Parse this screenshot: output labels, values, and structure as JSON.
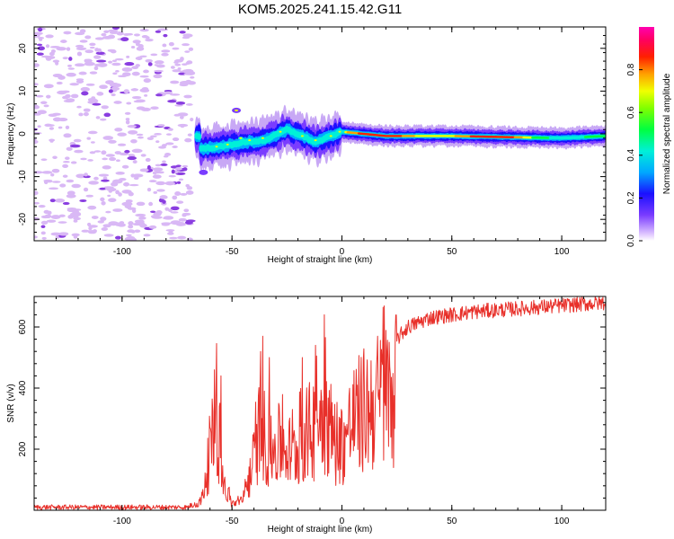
{
  "title": "KOM5.2025.241.15.42.G11",
  "chart_data": [
    {
      "type": "heatmap",
      "name": "spectrogram",
      "xlabel": "Height of straight line (km)",
      "ylabel": "Frequency (Hz)",
      "xlim": [
        -140,
        120
      ],
      "ylim": [
        -25,
        25
      ],
      "xticks": [
        -100,
        -50,
        0,
        50,
        100
      ],
      "yticks": [
        -20,
        -10,
        0,
        10,
        20
      ],
      "ridge": [
        {
          "x": -64,
          "freq": -3.5
        },
        {
          "x": -55,
          "freq": -3
        },
        {
          "x": -45,
          "freq": -2
        },
        {
          "x": -35,
          "freq": -1.5
        },
        {
          "x": -25,
          "freq": 1
        },
        {
          "x": -18,
          "freq": -0.5
        },
        {
          "x": -12,
          "freq": -2
        },
        {
          "x": -5,
          "freq": -0.5
        },
        {
          "x": 0,
          "freq": 0.5
        },
        {
          "x": 10,
          "freq": 0
        },
        {
          "x": 20,
          "freq": -0.5
        },
        {
          "x": 50,
          "freq": -0.5
        },
        {
          "x": 100,
          "freq": -1
        },
        {
          "x": 120,
          "freq": -0.5
        }
      ],
      "colorbar": {
        "label": "Normalized spectral amplitude",
        "range": [
          0,
          1
        ],
        "ticks": [
          "0.0",
          "0.2",
          "0.4",
          "0.6",
          "0.8"
        ]
      }
    },
    {
      "type": "line",
      "name": "snr",
      "xlabel": "Height of straight line (km)",
      "ylabel": "SNR (v/v)",
      "xlim": [
        -140,
        120
      ],
      "ylim": [
        0,
        700
      ],
      "xticks": [
        -100,
        -50,
        0,
        50,
        100
      ],
      "yticks": [
        200,
        400,
        600
      ],
      "color": "#e8302a",
      "envelope": [
        {
          "x": -140,
          "y": 10
        },
        {
          "x": -70,
          "y": 10
        },
        {
          "x": -64,
          "y": 40
        },
        {
          "x": -60,
          "y": 250
        },
        {
          "x": -57,
          "y": 420
        },
        {
          "x": -54,
          "y": 120
        },
        {
          "x": -50,
          "y": 30
        },
        {
          "x": -45,
          "y": 40
        },
        {
          "x": -40,
          "y": 230
        },
        {
          "x": -37,
          "y": 400
        },
        {
          "x": -33,
          "y": 250
        },
        {
          "x": -28,
          "y": 300
        },
        {
          "x": -22,
          "y": 250
        },
        {
          "x": -18,
          "y": 320
        },
        {
          "x": -12,
          "y": 380
        },
        {
          "x": -8,
          "y": 450
        },
        {
          "x": -4,
          "y": 330
        },
        {
          "x": 0,
          "y": 300
        },
        {
          "x": 5,
          "y": 400
        },
        {
          "x": 10,
          "y": 450
        },
        {
          "x": 20,
          "y": 520
        },
        {
          "x": 30,
          "y": 600
        },
        {
          "x": 40,
          "y": 630
        },
        {
          "x": 60,
          "y": 650
        },
        {
          "x": 80,
          "y": 660
        },
        {
          "x": 100,
          "y": 670
        },
        {
          "x": 120,
          "y": 680
        }
      ],
      "spikes": [
        {
          "x": -58,
          "y": 460
        },
        {
          "x": -55,
          "y": 440
        },
        {
          "x": -36,
          "y": 570
        },
        {
          "x": -33,
          "y": 500
        },
        {
          "x": -18,
          "y": 500
        },
        {
          "x": -12,
          "y": 540
        },
        {
          "x": -8,
          "y": 640
        }
      ]
    }
  ],
  "colors": {
    "frame": "#000000",
    "snr_line": "#e8302a",
    "noise_fill": "#d9b8f5",
    "noise_dark": "#8a3ee0"
  }
}
